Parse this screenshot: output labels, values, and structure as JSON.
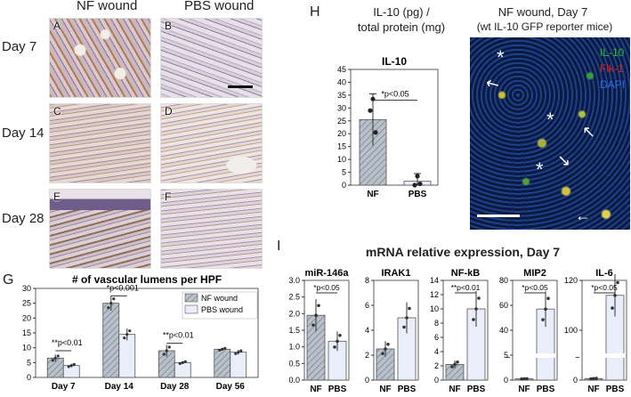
{
  "panel_letters": {
    "A": "A",
    "B": "B",
    "C": "C",
    "D": "D",
    "E": "E",
    "F": "F",
    "G": "G",
    "H": "H",
    "I": "I"
  },
  "histology": {
    "col_headers": [
      "NF wound",
      "PBS wound"
    ],
    "row_labels": [
      "Day 7",
      "Day 14",
      "Day 28"
    ]
  },
  "panel_h": {
    "heading_line1": "IL-10 (pg) /",
    "heading_line2": "total protein (mg)",
    "fluor_title_line1": "NF wound, Day 7",
    "fluor_title_line2": "(wt IL-10 GFP reporter mice)",
    "fluor_legend": [
      {
        "label": "IL-10",
        "color": "#22c022"
      },
      {
        "label": "Flk-1",
        "color": "#e02020"
      },
      {
        "label": "DAPI",
        "color": "#2a6fe0"
      }
    ]
  },
  "chart_data": [
    {
      "type": "bar",
      "panel": "H",
      "title": "IL-10",
      "categories": [
        "NF",
        "PBS"
      ],
      "values": [
        25.5,
        1.5
      ],
      "errors": [
        10,
        3
      ],
      "points": [
        [
          29,
          33.5,
          20.5
        ],
        [
          0,
          3.5,
          0.5
        ]
      ],
      "ylim": [
        0,
        45
      ],
      "yticks": [
        0,
        5,
        10,
        15,
        20,
        25,
        30,
        35,
        40,
        45
      ],
      "annotations": [
        "*p<0.05"
      ]
    },
    {
      "type": "bar",
      "panel": "G",
      "title": "# of vascular lumens per HPF",
      "categories": [
        "Day 7",
        "Day 14",
        "Day 28",
        "Day 56"
      ],
      "series": [
        {
          "name": "NF wound",
          "values": [
            6.5,
            25,
            9,
            9.5
          ],
          "errors": [
            1.2,
            2.5,
            2,
            0.5
          ]
        },
        {
          "name": "PBS wound",
          "values": [
            4,
            14.5,
            5,
            8.5
          ],
          "errors": [
            0.6,
            2,
            0.5,
            0.8
          ]
        }
      ],
      "ylim": [
        0,
        30
      ],
      "yticks": [
        0,
        5,
        10,
        15,
        20,
        25,
        30
      ],
      "annotations": [
        "**p<0.01",
        "*p<0.001",
        "**p<0.01"
      ],
      "legend_position": "top-right"
    },
    {
      "type": "bar",
      "panel": "I",
      "title": "mRNA relative expression, Day 7",
      "subcharts": [
        {
          "title": "miR-146a",
          "categories": [
            "NF",
            "PBS"
          ],
          "values": [
            1.95,
            1.17
          ],
          "ylim": [
            0,
            3.0
          ],
          "yticks": [
            "0.0",
            "0.5",
            "1.0",
            "1.5",
            "2.0",
            "2.5",
            "3.0"
          ],
          "annotation": "*p<0.05"
        },
        {
          "title": "IRAK1",
          "categories": [
            "NF",
            "PBS"
          ],
          "values": [
            2.5,
            5
          ],
          "ylim": [
            0,
            8
          ],
          "yticks": [
            "0",
            "2",
            "4",
            "6",
            "8"
          ],
          "annotation": ""
        },
        {
          "title": "NF-kB",
          "categories": [
            "NF",
            "PBS"
          ],
          "values": [
            2.2,
            10
          ],
          "ylim": [
            0,
            14
          ],
          "yticks": [
            "0",
            "2",
            "4",
            "6",
            "8",
            "10",
            "12",
            "14"
          ],
          "annotation": "**p<0.01"
        },
        {
          "title": "MIP2",
          "categories": [
            "NF",
            "PBS"
          ],
          "values": [
            1,
            57
          ],
          "ylim": [
            0,
            80
          ],
          "yticks": [
            "0",
            "5",
            "40",
            "60",
            "80"
          ],
          "annotation": "*p<0.05",
          "broken_axis": true
        },
        {
          "title": "IL-6",
          "categories": [
            "NF",
            "PBS"
          ],
          "values": [
            1.8,
            102
          ],
          "ylim": [
            0,
            120
          ],
          "yticks": [
            "0",
            "100",
            "120"
          ],
          "annotation": "*p<0.05",
          "broken_axis": true
        }
      ]
    }
  ]
}
